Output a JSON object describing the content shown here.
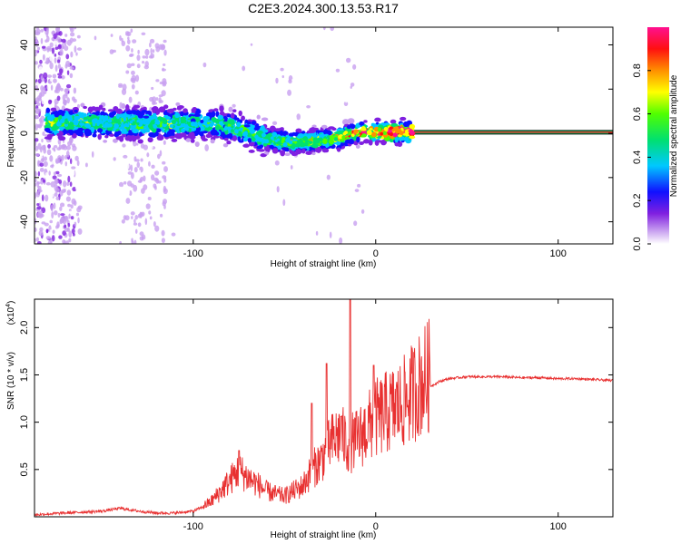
{
  "chart_data": [
    {
      "type": "heatmap",
      "title": "C2E3.2024.300.13.53.R17",
      "xlabel": "Height of straight line (km)",
      "ylabel": "Frequency (Hz)",
      "xlim": [
        -187,
        130
      ],
      "ylim": [
        -50,
        48
      ],
      "xticks": [
        -100,
        0,
        100
      ],
      "xtick_labels": [
        "-100",
        "0",
        "100"
      ],
      "yticks": [
        -40,
        -20,
        0,
        20,
        40
      ],
      "ytick_labels": [
        "-40",
        "-20",
        "0",
        "20",
        "40"
      ],
      "ridge": {
        "x": [
          -170,
          -150,
          -130,
          -110,
          -90,
          -80,
          -70,
          -60,
          -50,
          -40,
          -30,
          -20,
          -10,
          0,
          10,
          130
        ],
        "y": [
          5,
          4.5,
          4.5,
          4.5,
          4.5,
          3,
          0.5,
          -2.5,
          -4,
          -4,
          -3,
          -2,
          0.5,
          0.5,
          0.5,
          0.5
        ],
        "amplitude": [
          0.55,
          0.5,
          0.55,
          0.55,
          0.45,
          0.5,
          0.5,
          0.55,
          0.6,
          0.6,
          0.65,
          0.7,
          0.8,
          0.85,
          1.0,
          1.0
        ]
      },
      "colorbar": {
        "label": "Normalized spectral amplitude",
        "range": [
          0,
          1
        ],
        "ticks": [
          0.0,
          0.2,
          0.4,
          0.6,
          0.8
        ],
        "tick_labels": [
          "0.0",
          "0.2",
          "0.4",
          "0.6",
          "0.8"
        ]
      }
    },
    {
      "type": "line",
      "xlabel": "Height of straight line (km)",
      "ylabel": "SNR (10 * v/v)",
      "yscale_label": "(x10",
      "yscale_exp": "4",
      "yscale_close": ")",
      "xlim": [
        -187,
        130
      ],
      "ylim": [
        0,
        2.3
      ],
      "xticks": [
        -100,
        0,
        100
      ],
      "xtick_labels": [
        "-100",
        "0",
        "100"
      ],
      "yticks": [
        0.5,
        1.0,
        1.5,
        2.0
      ],
      "ytick_labels": [
        "0.5",
        "1.0",
        "1.5",
        "2.0"
      ],
      "series": [
        {
          "name": "SNR",
          "color": "#e83030",
          "x": [
            -187,
            -180,
            -170,
            -160,
            -150,
            -140,
            -130,
            -120,
            -110,
            -100,
            -95,
            -90,
            -85,
            -80,
            -75,
            -70,
            -65,
            -60,
            -55,
            -50,
            -45,
            -40,
            -35,
            -30,
            -25,
            -20,
            -15,
            -10,
            -5,
            0,
            5,
            10,
            15,
            20,
            25,
            30,
            35,
            40,
            50,
            60,
            70,
            80,
            90,
            100,
            110,
            120,
            130
          ],
          "y": [
            0.02,
            0.03,
            0.04,
            0.05,
            0.06,
            0.09,
            0.06,
            0.04,
            0.04,
            0.06,
            0.1,
            0.15,
            0.25,
            0.35,
            0.45,
            0.38,
            0.32,
            0.25,
            0.22,
            0.2,
            0.25,
            0.3,
            0.45,
            0.55,
            0.7,
            0.8,
            0.7,
            0.75,
            0.85,
            0.95,
            1.0,
            1.05,
            1.1,
            1.2,
            1.3,
            1.38,
            1.43,
            1.46,
            1.48,
            1.48,
            1.48,
            1.47,
            1.47,
            1.46,
            1.46,
            1.45,
            1.44
          ],
          "peaks": [
            {
              "x": -75,
              "y": 0.7
            },
            {
              "x": -35,
              "y": 1.2
            },
            {
              "x": -27,
              "y": 1.62
            },
            {
              "x": -19,
              "y": 1.06
            },
            {
              "x": -14,
              "y": 2.3
            },
            {
              "x": -1,
              "y": 1.6
            }
          ]
        }
      ]
    }
  ]
}
